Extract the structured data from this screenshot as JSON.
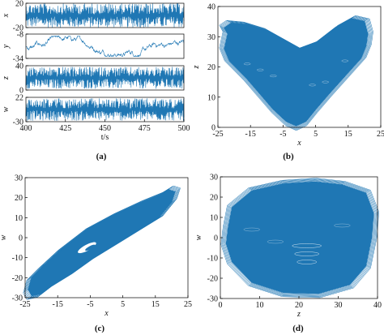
{
  "chart_data": [
    {
      "panel": "(a)",
      "type": "line",
      "xlabel": "t/s",
      "xlim": [
        400,
        500
      ],
      "xticks": [
        400,
        425,
        450,
        475,
        500
      ],
      "series": [
        {
          "name": "x",
          "ylabel": "x",
          "ylim": [
            -20,
            20
          ],
          "yticks": [
            -20,
            20
          ],
          "range_visible": [
            -20,
            20
          ]
        },
        {
          "name": "y",
          "ylabel": "y",
          "ylim": [
            -34,
            -8
          ],
          "yticks": [
            -34,
            -8
          ],
          "range_visible": [
            -32,
            -10
          ]
        },
        {
          "name": "z",
          "ylabel": "z",
          "ylim": [
            0,
            40
          ],
          "yticks": [
            0,
            40
          ],
          "range_visible": [
            2,
            38
          ]
        },
        {
          "name": "w",
          "ylabel": "w",
          "ylim": [
            -30,
            22
          ],
          "yticks": [
            -30,
            22
          ],
          "range_visible": [
            -28,
            20
          ]
        }
      ]
    },
    {
      "panel": "(b)",
      "type": "scatter",
      "xlabel": "x",
      "ylabel": "z",
      "xlim": [
        -25,
        25
      ],
      "ylim": [
        0,
        40
      ],
      "xticks": [
        -25,
        -15,
        -5,
        5,
        15,
        25
      ],
      "yticks": [
        0,
        10,
        20,
        30,
        40
      ],
      "attractor_outline": [
        [
          -23,
          33
        ],
        [
          -22,
          31
        ],
        [
          -23,
          26
        ],
        [
          -21.5,
          22
        ],
        [
          -16,
          16
        ],
        [
          -12,
          11
        ],
        [
          -8,
          6
        ],
        [
          -4,
          2
        ],
        [
          -1,
          0.5
        ],
        [
          2,
          2
        ],
        [
          5,
          6
        ],
        [
          9,
          11
        ],
        [
          14,
          17
        ],
        [
          19,
          23
        ],
        [
          20.5,
          27
        ],
        [
          21,
          31
        ],
        [
          20,
          35
        ],
        [
          16,
          36
        ],
        [
          11,
          33
        ],
        [
          5,
          28
        ],
        [
          0,
          26
        ],
        [
          -5,
          29
        ],
        [
          -10,
          32
        ],
        [
          -16,
          34
        ],
        [
          -21,
          34.5
        ]
      ]
    },
    {
      "panel": "(c)",
      "type": "scatter",
      "xlabel": "x",
      "ylabel": "w",
      "xlim": [
        -25,
        25
      ],
      "ylim": [
        -30,
        30
      ],
      "xticks": [
        -25,
        -15,
        -5,
        5,
        15,
        25
      ],
      "yticks": [
        -30,
        -20,
        -10,
        0,
        10,
        20,
        30
      ],
      "attractor_outline": [
        [
          -24,
          -26
        ],
        [
          -23,
          -20
        ],
        [
          -20,
          -15
        ],
        [
          -14,
          -6
        ],
        [
          -6,
          4
        ],
        [
          2,
          11
        ],
        [
          10,
          17
        ],
        [
          16,
          21
        ],
        [
          19,
          24
        ],
        [
          21,
          23
        ],
        [
          20,
          18
        ],
        [
          16,
          10
        ],
        [
          10,
          4
        ],
        [
          4,
          -2
        ],
        [
          -4,
          -10
        ],
        [
          -10,
          -17
        ],
        [
          -16,
          -23
        ],
        [
          -20,
          -28
        ],
        [
          -23,
          -29
        ]
      ]
    },
    {
      "panel": "(d)",
      "type": "scatter",
      "xlabel": "z",
      "ylabel": "w",
      "xlim": [
        0,
        40
      ],
      "ylim": [
        -30,
        30
      ],
      "xticks": [
        0,
        10,
        20,
        30,
        40
      ],
      "yticks": [
        -30,
        -20,
        -10,
        0,
        10,
        20,
        30
      ],
      "attractor_outline": [
        [
          2,
          5
        ],
        [
          3,
          15
        ],
        [
          8,
          23
        ],
        [
          16,
          26.5
        ],
        [
          24,
          27.5
        ],
        [
          31,
          26
        ],
        [
          37,
          22
        ],
        [
          39,
          12
        ],
        [
          38.5,
          0
        ],
        [
          37,
          -14
        ],
        [
          33,
          -23
        ],
        [
          25,
          -27.5
        ],
        [
          16,
          -27
        ],
        [
          8,
          -22
        ],
        [
          3,
          -12
        ],
        [
          1.5,
          -3
        ]
      ]
    }
  ],
  "panel_labels": [
    "(a)",
    "(b)",
    "(c)",
    "(d)"
  ]
}
